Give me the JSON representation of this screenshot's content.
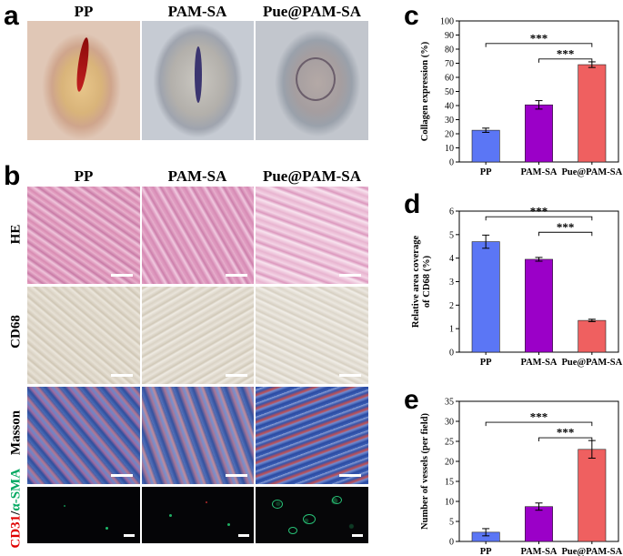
{
  "panels": {
    "a": {
      "letter": "a",
      "groups": [
        "PP",
        "PAM-SA",
        "Pue@PAM-SA"
      ]
    },
    "b": {
      "letter": "b",
      "groups": [
        "PP",
        "PAM-SA",
        "Pue@PAM-SA"
      ],
      "rows": [
        "HE",
        "CD68",
        "Masson"
      ],
      "fluor_row": {
        "part1": "CD31",
        "sep": "/",
        "part2": "α-SMA"
      }
    },
    "c": {
      "letter": "c"
    },
    "d": {
      "letter": "d"
    },
    "e": {
      "letter": "e"
    }
  },
  "colors": {
    "pp": "#5b76f5",
    "pamsa": "#9b00c8",
    "pue": "#ef6060",
    "fluor_red": "#e00000",
    "fluor_green": "#00a860"
  },
  "chart_data": [
    {
      "id": "c",
      "type": "bar",
      "categories": [
        "PP",
        "PAM-SA",
        "Pue@PAM-SA"
      ],
      "values": [
        22.5,
        40.5,
        69.0
      ],
      "errors": [
        1.5,
        3.0,
        2.0
      ],
      "ylabel": "Collagen expression (%)",
      "ylim": [
        0,
        100
      ],
      "yticks": [
        0,
        10,
        20,
        30,
        40,
        50,
        60,
        70,
        80,
        90,
        100
      ],
      "significance": [
        {
          "from": 0,
          "to": 2,
          "label": "***"
        },
        {
          "from": 1,
          "to": 2,
          "label": "***"
        }
      ]
    },
    {
      "id": "d",
      "type": "bar",
      "categories": [
        "PP",
        "PAM-SA",
        "Pue@PAM-SA"
      ],
      "values": [
        4.7,
        3.95,
        1.35
      ],
      "errors": [
        0.28,
        0.08,
        0.05
      ],
      "ylabel_lines": [
        "Relative area coverage",
        "of CD68 (%)"
      ],
      "ylim": [
        0,
        6
      ],
      "yticks": [
        0,
        1,
        2,
        3,
        4,
        5,
        6
      ],
      "significance": [
        {
          "from": 0,
          "to": 2,
          "label": "***"
        },
        {
          "from": 1,
          "to": 2,
          "label": "***"
        }
      ]
    },
    {
      "id": "e",
      "type": "bar",
      "categories": [
        "PP",
        "PAM-SA",
        "Pue@PAM-SA"
      ],
      "values": [
        2.3,
        8.7,
        23.0
      ],
      "errors": [
        0.9,
        0.9,
        2.2
      ],
      "ylabel": "Number of vessels (per field)",
      "ylim": [
        0,
        35
      ],
      "yticks": [
        0,
        5,
        10,
        15,
        20,
        25,
        30,
        35
      ],
      "significance": [
        {
          "from": 0,
          "to": 2,
          "label": "***"
        },
        {
          "from": 1,
          "to": 2,
          "label": "***"
        }
      ]
    }
  ]
}
